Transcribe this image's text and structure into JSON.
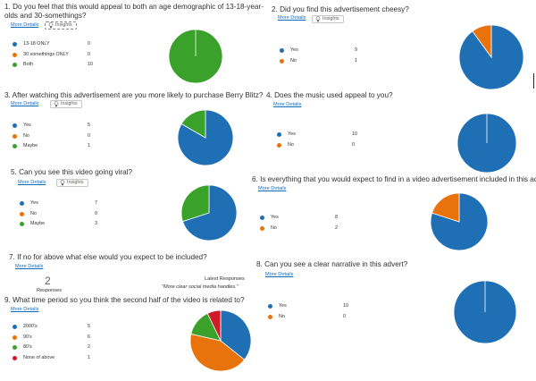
{
  "colors": {
    "blue": "#1f6fb4",
    "orange": "#e8730c",
    "green": "#3aa12b",
    "red": "#d01b2a",
    "link": "#0f6cbd"
  },
  "common": {
    "more_details": "More Details",
    "insights": "Insights"
  },
  "questions": [
    {
      "title": "1.  Do you feel that this would appeal to both an age demographic of 13-18-year-olds and 30-somethings?"
    },
    {
      "title": "2.  Did you find this advertisement cheesy?"
    },
    {
      "title": "3.  After watching this advertisement are you more likely to purchase Berry Blitz?"
    },
    {
      "title": "4.  Does the music used appeal to you?"
    },
    {
      "title": "5.  Can you see this video going viral?"
    },
    {
      "title": "6.  Is everything that you would expect to find in a video advertisement included in this advert?"
    },
    {
      "title": "7.  If no for above what else would you expect to be included?"
    },
    {
      "title": "8.  Can you see a clear narrative in this advert?"
    },
    {
      "title": "9.  What time period so you think the second half of the video is related to?"
    }
  ],
  "q7": {
    "responses_count": "2",
    "responses_label": "Responses",
    "latest_label": "Latest Responses",
    "latest_quote": "\"More clear social media handles.\""
  },
  "chart_data": [
    {
      "type": "pie",
      "categories": [
        "13-18 ONLY",
        "30 somethings ONLY",
        "Both"
      ],
      "values": [
        0,
        0,
        10
      ],
      "colors": [
        "#1f6fb4",
        "#e8730c",
        "#3aa12b"
      ]
    },
    {
      "type": "pie",
      "categories": [
        "Yes",
        "No"
      ],
      "values": [
        9,
        1
      ],
      "colors": [
        "#1f6fb4",
        "#e8730c"
      ]
    },
    {
      "type": "pie",
      "categories": [
        "Yes",
        "No",
        "Maybe"
      ],
      "values": [
        5,
        0,
        1
      ],
      "colors": [
        "#1f6fb4",
        "#e8730c",
        "#3aa12b"
      ]
    },
    {
      "type": "pie",
      "categories": [
        "Yes",
        "No"
      ],
      "values": [
        10,
        0
      ],
      "colors": [
        "#1f6fb4",
        "#e8730c"
      ]
    },
    {
      "type": "pie",
      "categories": [
        "Yes",
        "No",
        "Maybe"
      ],
      "values": [
        7,
        0,
        3
      ],
      "colors": [
        "#1f6fb4",
        "#e8730c",
        "#3aa12b"
      ]
    },
    {
      "type": "pie",
      "categories": [
        "Yes",
        "No"
      ],
      "values": [
        8,
        2
      ],
      "colors": [
        "#1f6fb4",
        "#e8730c"
      ]
    },
    {
      "type": "pie",
      "categories": [
        "Yes",
        "No"
      ],
      "values": [
        10,
        0
      ],
      "colors": [
        "#1f6fb4",
        "#e8730c"
      ]
    },
    {
      "type": "pie",
      "categories": [
        "2000's",
        "90's",
        "80's",
        "None of above"
      ],
      "values": [
        5,
        6,
        2,
        1
      ],
      "colors": [
        "#1f6fb4",
        "#e8730c",
        "#3aa12b",
        "#d01b2a"
      ]
    }
  ]
}
